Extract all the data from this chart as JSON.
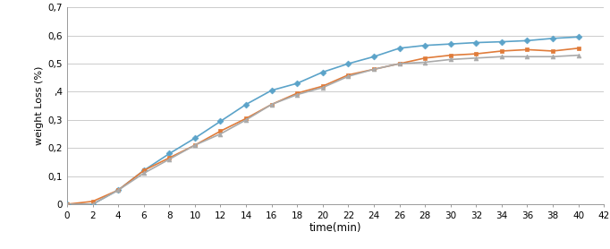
{
  "time": [
    0,
    2,
    4,
    6,
    8,
    10,
    12,
    14,
    16,
    18,
    20,
    22,
    24,
    26,
    28,
    30,
    32,
    34,
    36,
    38,
    40
  ],
  "pristine": [
    0.0,
    0.0,
    0.05,
    0.11,
    0.16,
    0.21,
    0.25,
    0.3,
    0.355,
    0.39,
    0.415,
    0.455,
    0.48,
    0.5,
    0.505,
    0.515,
    0.52,
    0.525,
    0.525,
    0.525,
    0.53
  ],
  "bm1": [
    0.0,
    0.0,
    0.05,
    0.12,
    0.18,
    0.235,
    0.295,
    0.355,
    0.405,
    0.43,
    0.47,
    0.5,
    0.525,
    0.555,
    0.565,
    0.57,
    0.575,
    0.578,
    0.582,
    0.59,
    0.595
  ],
  "bm2": [
    0.0,
    0.01,
    0.05,
    0.12,
    0.165,
    0.21,
    0.26,
    0.305,
    0.355,
    0.395,
    0.42,
    0.46,
    0.48,
    0.5,
    0.52,
    0.53,
    0.535,
    0.545,
    0.55,
    0.545,
    0.555
  ],
  "color_pristine": "#AAAAAA",
  "color_bm1": "#5BA3C9",
  "color_bm2": "#E07B39",
  "marker_pristine": "^",
  "marker_bm1": "D",
  "marker_bm2": "s",
  "xlabel": "time(min)",
  "ylabel": "weight Loss (%)",
  "xlim": [
    0,
    42
  ],
  "ylim": [
    0,
    0.7
  ],
  "xticks": [
    0,
    2,
    4,
    6,
    8,
    10,
    12,
    14,
    16,
    18,
    20,
    22,
    24,
    26,
    28,
    30,
    32,
    34,
    36,
    38,
    40,
    42
  ],
  "yticks": [
    0,
    0.1,
    0.2,
    0.3,
    0.4,
    0.5,
    0.6,
    0.7
  ],
  "ytick_labels": [
    "0",
    "0,1",
    "0,2",
    "0,3",
    ",4",
    "0,5",
    "0,6",
    "0,7"
  ],
  "linewidth": 1.2,
  "markersize": 3.5,
  "background_color": "#FFFFFF",
  "grid_color": "#CCCCCC"
}
